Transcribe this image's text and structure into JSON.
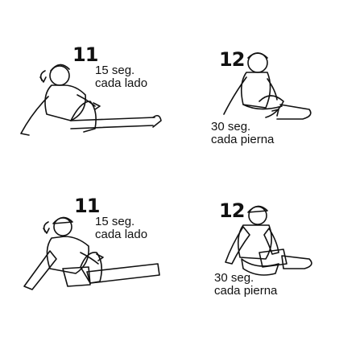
{
  "panels": [
    {
      "number": "11",
      "caption_line1": "15 seg.",
      "caption_line2": "cada lado"
    },
    {
      "number": "12",
      "caption_line1": "30 seg.",
      "caption_line2": "cada pierna"
    },
    {
      "number": "11",
      "caption_line1": "15 seg.",
      "caption_line2": "cada lado"
    },
    {
      "number": "12",
      "caption_line1": "30 seg.",
      "caption_line2": "cada pierna"
    }
  ],
  "colors": {
    "skin": "#f5e98c",
    "shirt": "#d9343a",
    "shorts": "#3f7fd6",
    "line": "#111111",
    "plain": "#ffffff"
  }
}
